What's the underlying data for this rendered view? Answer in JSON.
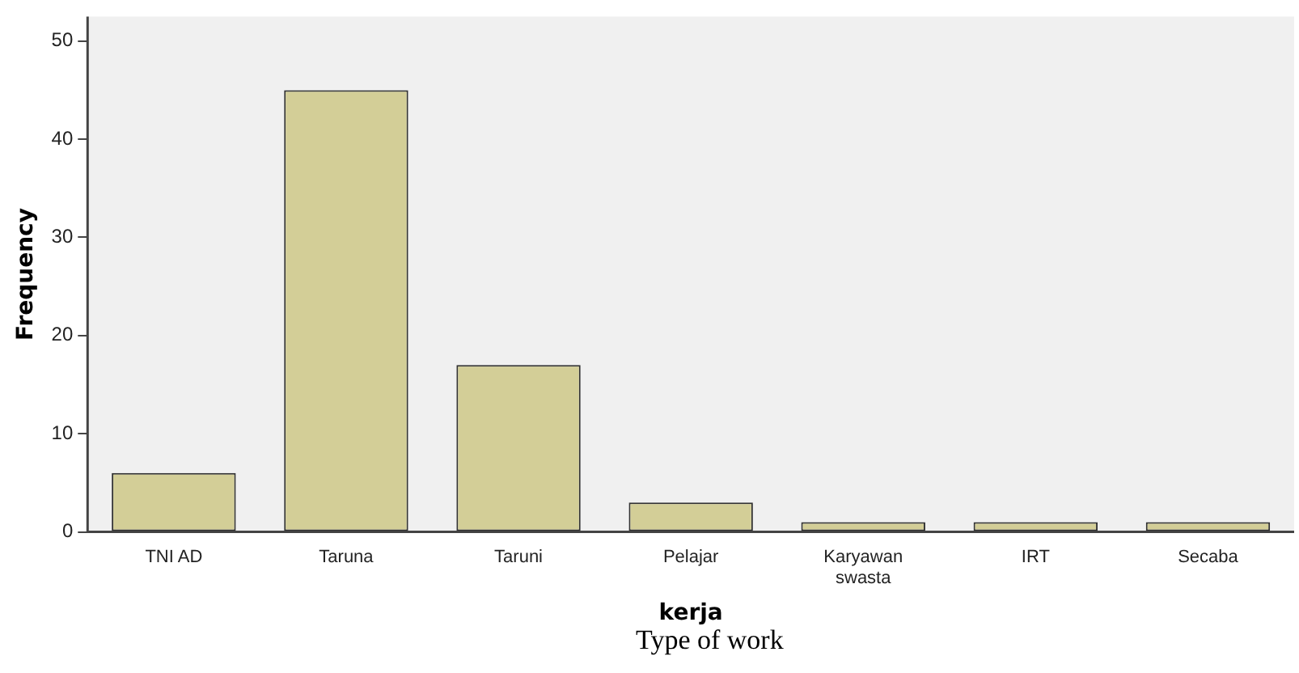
{
  "chart_data": {
    "type": "bar",
    "xlabel": "kerja",
    "ylabel": "Frequency",
    "categories": [
      "TNI AD",
      "Taruna",
      "Taruni",
      "Pelajar",
      "Karyawan\nswasta",
      "IRT",
      "Secaba"
    ],
    "values": [
      6,
      45,
      17,
      3,
      1,
      1,
      1
    ],
    "color": "#d3ce97",
    "ylim": [
      0,
      52.5
    ],
    "yticks": [
      0,
      10,
      20,
      30,
      40,
      50
    ],
    "grid": false,
    "legend": false,
    "annotations": [
      "Type of work"
    ]
  }
}
